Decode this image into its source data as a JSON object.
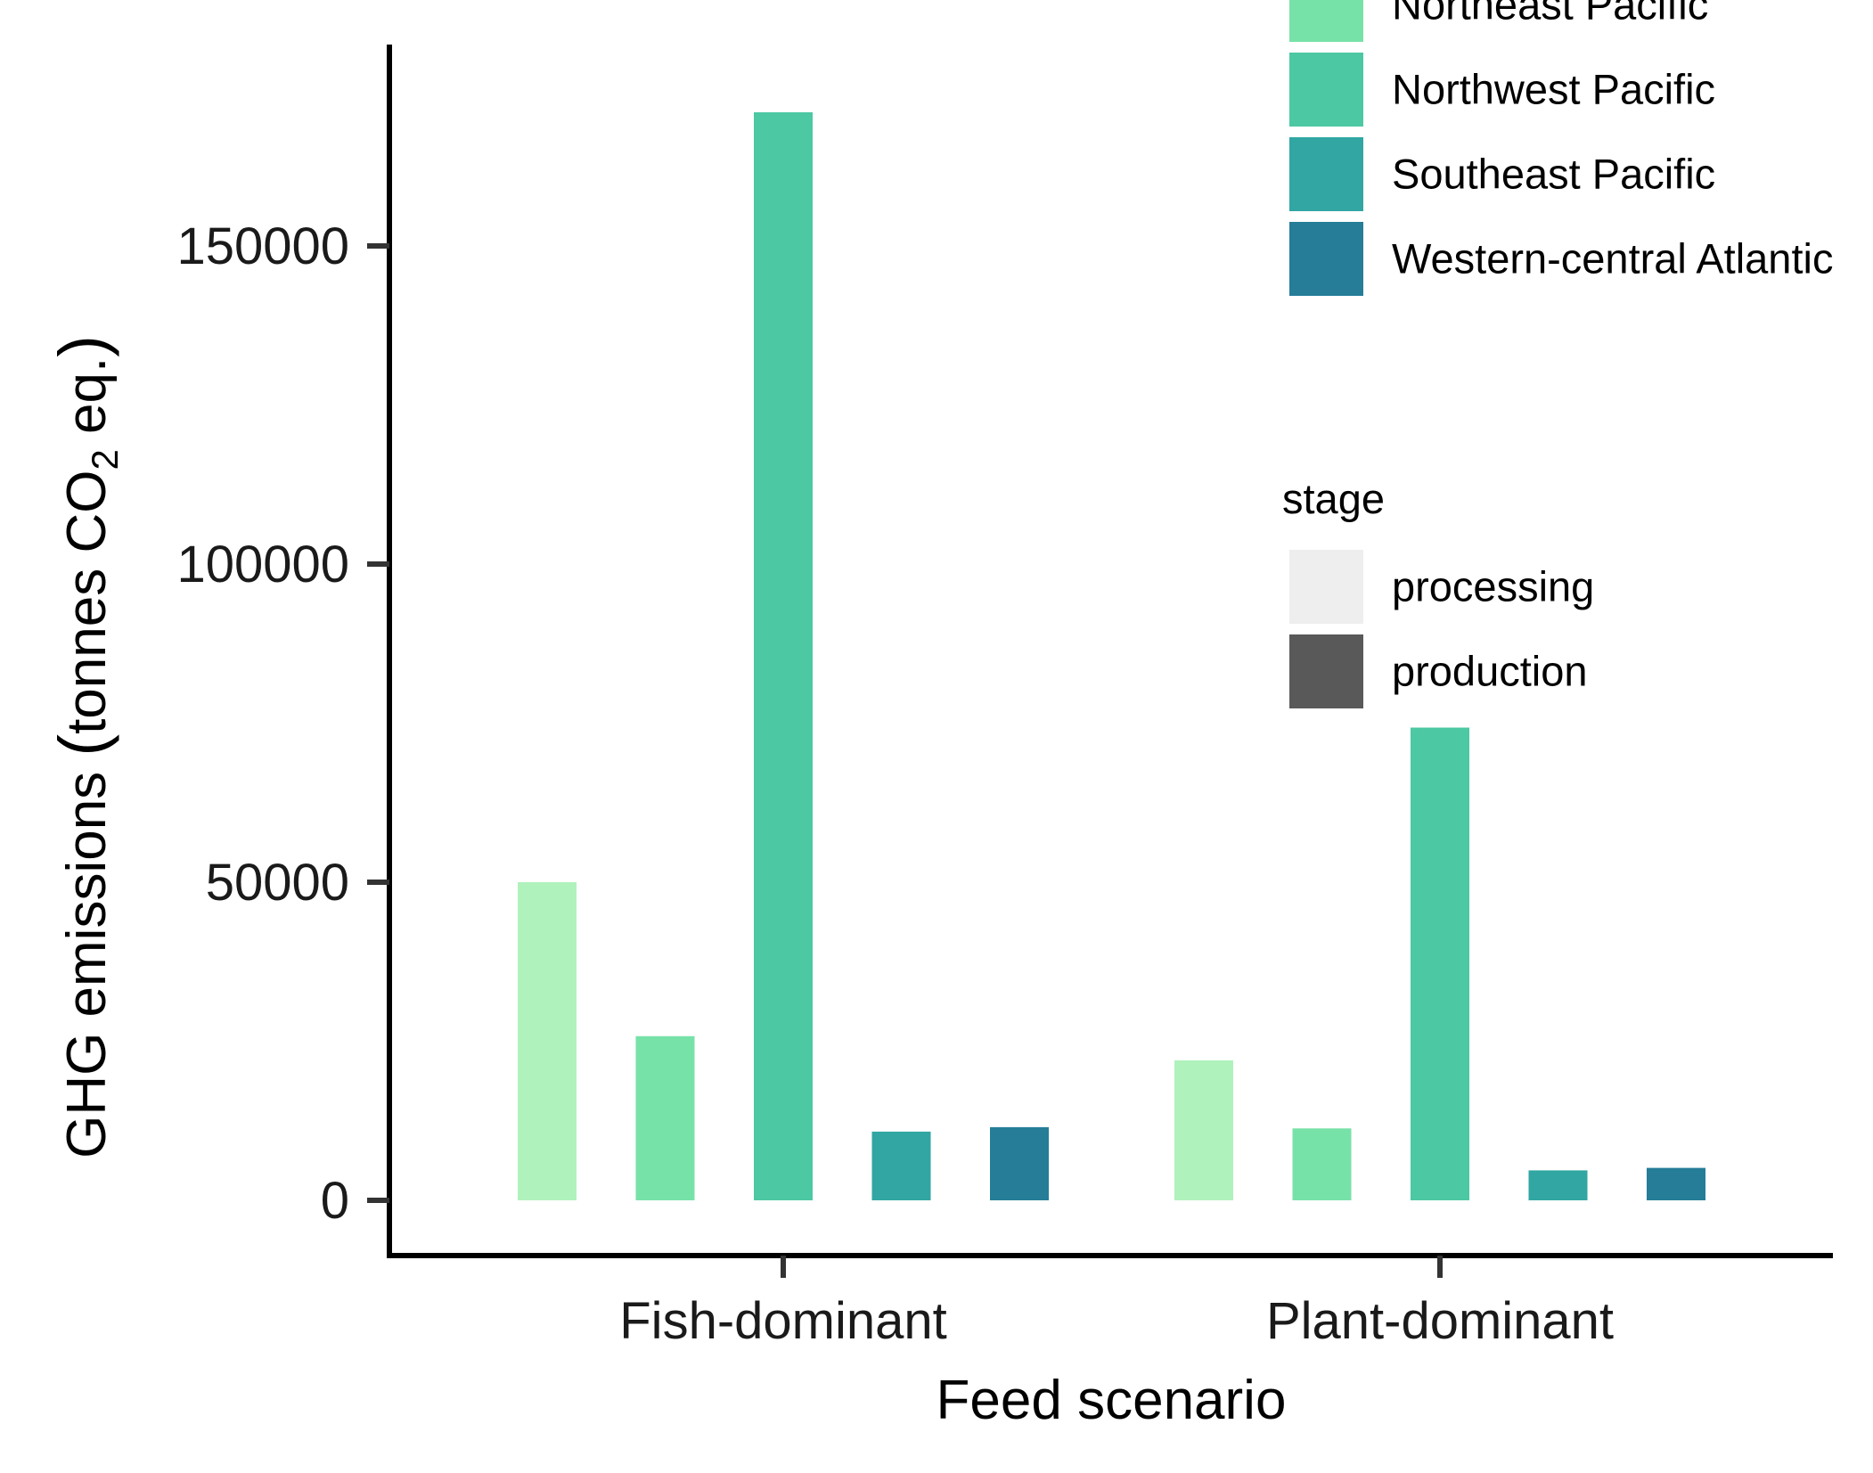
{
  "chart_data": {
    "type": "bar",
    "xlabel": "Feed scenario",
    "ylabel_parts": [
      "GHG emissions ",
      "(",
      "tonnes CO",
      "2",
      " eq.",
      ")"
    ],
    "categories": [
      "Fish-dominant",
      "Plant-dominant"
    ],
    "ylim": [
      -8500,
      179000
    ],
    "yticks": [
      0,
      50000,
      100000,
      150000
    ],
    "ytick_labels": [
      "0",
      "50000",
      "100000",
      "150000"
    ],
    "series": [
      {
        "name": "",
        "color": "#b0f2bc",
        "values": [
          50000,
          22000
        ]
      },
      {
        "name": "Northeast Pacific",
        "color": "#77e2a8",
        "values": [
          25800,
          11300
        ]
      },
      {
        "name": "Northwest Pacific",
        "color": "#4cc8a3",
        "values": [
          171000,
          74300
        ]
      },
      {
        "name": "Southeast Pacific",
        "color": "#31a6a3",
        "values": [
          10800,
          4700
        ]
      },
      {
        "name": "Western-central Atlantic",
        "color": "#257d98",
        "values": [
          11500,
          5100
        ]
      }
    ],
    "legend_region": {
      "position": "top-right",
      "entries": [
        "Northeast Pacific",
        "Northwest Pacific",
        "Southeast Pacific",
        "Western-central Atlantic"
      ],
      "colors": [
        "#77e2a8",
        "#4cc8a3",
        "#31a6a3",
        "#257d98"
      ]
    },
    "legend_stage": {
      "title": "stage",
      "entries": [
        "processing",
        "production"
      ],
      "colors": [
        "#eeeeee",
        "#595959"
      ]
    }
  }
}
